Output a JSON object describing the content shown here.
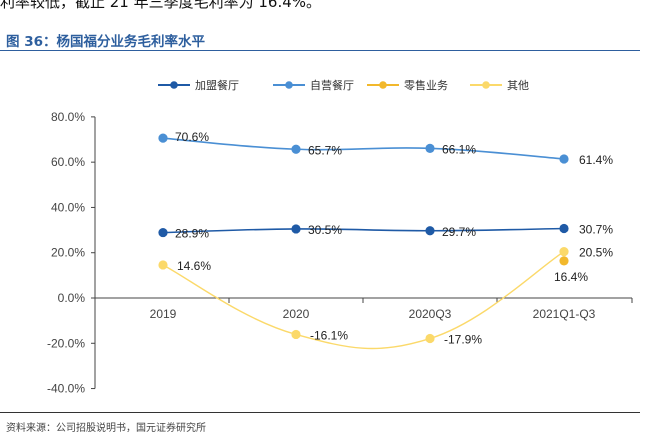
{
  "page": {
    "top_text": "利率较低，截止 21 年三季度毛利率为 16.4%。",
    "figure_title": "图 36：杨国福分业务毛利率水平",
    "source": "资料来源：公司招股说明书，国元证券研究所"
  },
  "chart_data": {
    "type": "line",
    "categories": [
      "2019",
      "2020",
      "2020Q3",
      "2021Q1-Q3"
    ],
    "series": [
      {
        "name": "加盟餐厅",
        "color": "#1f5aa6",
        "values": [
          28.9,
          30.5,
          29.7,
          30.7
        ],
        "labels": [
          "28.9%",
          "30.5%",
          "29.7%",
          "30.7%"
        ]
      },
      {
        "name": "自营餐厅",
        "color": "#4a8fd4",
        "values": [
          70.6,
          65.7,
          66.1,
          61.4
        ],
        "labels": [
          "70.6%",
          "65.7%",
          "66.1%",
          "61.4%"
        ]
      },
      {
        "name": "零售业务",
        "color": "#f2b82c",
        "values": [
          null,
          null,
          null,
          16.4
        ],
        "labels": [
          "",
          "",
          "",
          "16.4%"
        ]
      },
      {
        "name": "其他",
        "color": "#fbd96a",
        "values": [
          14.6,
          -16.1,
          -17.9,
          20.5
        ],
        "labels": [
          "14.6%",
          "-16.1%",
          "-17.9%",
          "20.5%"
        ]
      }
    ],
    "y_ticks": [
      "80.0%",
      "60.0%",
      "40.0%",
      "20.0%",
      "0.0%",
      "-20.0%",
      "-40.0%"
    ],
    "ylim": [
      -40,
      80
    ],
    "legend_position": "top",
    "grid": false
  }
}
